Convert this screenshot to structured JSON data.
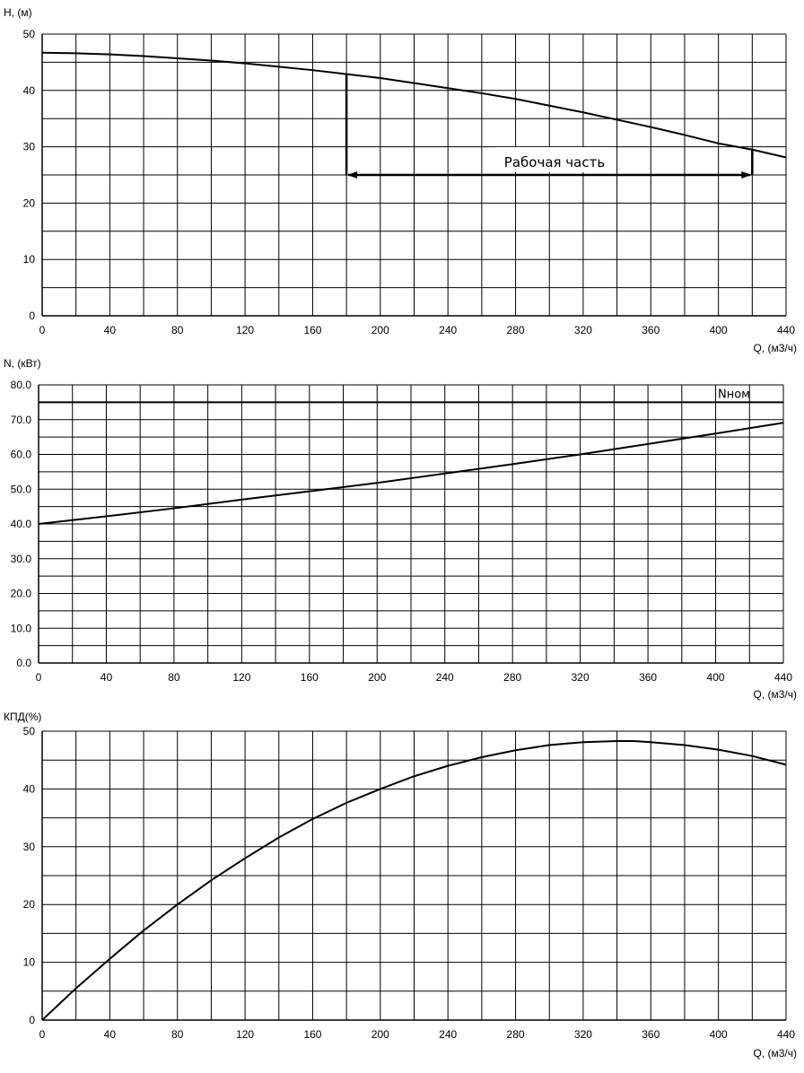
{
  "chart_data": [
    {
      "type": "line",
      "ylabel": "H, (м)",
      "xlabel": "Q, (м3/ч)",
      "xlim": [
        0,
        440
      ],
      "ylim": [
        0,
        50
      ],
      "x_ticks": [
        "0",
        "40",
        "80",
        "120",
        "160",
        "200",
        "240",
        "280",
        "320",
        "360",
        "400",
        "440"
      ],
      "y_ticks": [
        "0",
        "10",
        "20",
        "30",
        "40",
        "50"
      ],
      "grid": true,
      "series": [
        {
          "x": [
            0,
            20,
            40,
            60,
            80,
            100,
            120,
            140,
            160,
            180,
            200,
            220,
            240,
            260,
            280,
            300,
            320,
            340,
            360,
            380,
            400,
            420,
            440
          ],
          "y": [
            46.7,
            46.6,
            46.4,
            46.1,
            45.7,
            45.3,
            44.8,
            44.2,
            43.6,
            42.9,
            42.2,
            41.3,
            40.4,
            39.5,
            38.5,
            37.3,
            36.1,
            34.8,
            33.5,
            32.1,
            30.6,
            29.5,
            28.1
          ]
        }
      ],
      "working_range": {
        "label": "Рабочая часть",
        "x_start": 180,
        "x_end": 420,
        "y_level": 25
      }
    },
    {
      "type": "line",
      "ylabel": "N, (кВт)",
      "xlabel": "Q, (м3/ч)",
      "xlim": [
        0,
        440
      ],
      "ylim": [
        0,
        80
      ],
      "x_ticks": [
        "0",
        "40",
        "80",
        "120",
        "160",
        "200",
        "240",
        "280",
        "320",
        "360",
        "400",
        "440"
      ],
      "y_ticks": [
        "0.0",
        "10.0",
        "20.0",
        "30.0",
        "40.0",
        "50.0",
        "60.0",
        "70.0",
        "80.0"
      ],
      "grid": true,
      "series": [
        {
          "x": [
            0,
            40,
            80,
            120,
            160,
            200,
            240,
            280,
            320,
            360,
            400,
            440
          ],
          "y": [
            40.0,
            42.2,
            44.5,
            47.0,
            49.4,
            51.8,
            54.5,
            57.2,
            60.0,
            63.0,
            66.0,
            69.1
          ]
        }
      ],
      "reference_line": {
        "label": "Nном",
        "y": 75
      }
    },
    {
      "type": "line",
      "ylabel": "КПД(%)",
      "xlabel": "Q, (м3/ч)",
      "xlim": [
        0,
        440
      ],
      "ylim": [
        0,
        50
      ],
      "x_ticks": [
        "0",
        "40",
        "80",
        "120",
        "160",
        "200",
        "240",
        "280",
        "320",
        "360",
        "400",
        "440"
      ],
      "y_ticks": [
        "0",
        "10",
        "20",
        "30",
        "40",
        "50"
      ],
      "grid": true,
      "series": [
        {
          "x": [
            0,
            20,
            40,
            60,
            80,
            100,
            120,
            140,
            160,
            180,
            200,
            220,
            240,
            260,
            280,
            300,
            320,
            340,
            350,
            360,
            380,
            400,
            420,
            440
          ],
          "y": [
            0,
            5.5,
            10.6,
            15.5,
            20.0,
            24.2,
            28.0,
            31.6,
            34.8,
            37.6,
            40.0,
            42.2,
            44.0,
            45.5,
            46.7,
            47.6,
            48.1,
            48.3,
            48.3,
            48.1,
            47.6,
            46.8,
            45.7,
            44.2
          ]
        }
      ]
    }
  ]
}
